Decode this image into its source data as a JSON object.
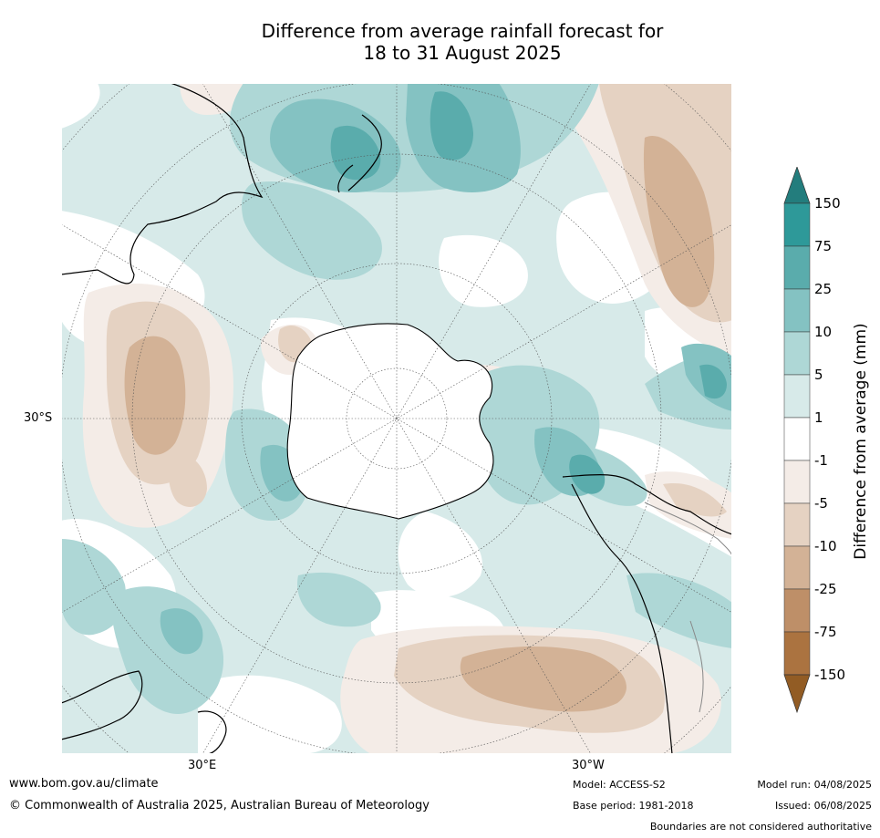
{
  "title_line1": "Difference from average rainfall forecast for",
  "title_line2": "18 to 31 August 2025",
  "map": {
    "projection": "south polar stereographic",
    "lat_label": "30°S",
    "lon_label_left": "30°E",
    "lon_label_right": "30°W"
  },
  "colorbar": {
    "label": "Difference from average (mm)",
    "ticks": [
      "150",
      "75",
      "25",
      "10",
      "5",
      "1",
      "-1",
      "-5",
      "-10",
      "-25",
      "-75",
      "-150"
    ],
    "colors": {
      "gt150": "#237d7d",
      "75_150": "#2e9999",
      "25_75": "#5aacac",
      "10_25": "#84c2c2",
      "5_10": "#aed7d6",
      "1_5": "#d7eae9",
      "-1_1": "#ffffff",
      "-5_-1": "#f4ece7",
      "-10_-5": "#e5d2c2",
      "-25_-10": "#d3b296",
      "-75_-25": "#be8f68",
      "-150_-75": "#ab7340",
      "lt-150": "#925c24"
    }
  },
  "footer": {
    "website": "www.bom.gov.au/climate",
    "copyright": "© Commonwealth of Australia 2025, Australian Bureau of Meteorology",
    "model": "Model: ACCESS-S2",
    "base_period": "Base period: 1981-2018",
    "model_run": "Model run: 04/08/2025",
    "issued": "Issued: 06/08/2025",
    "disclaimer": "Boundaries are not considered authoritative"
  }
}
